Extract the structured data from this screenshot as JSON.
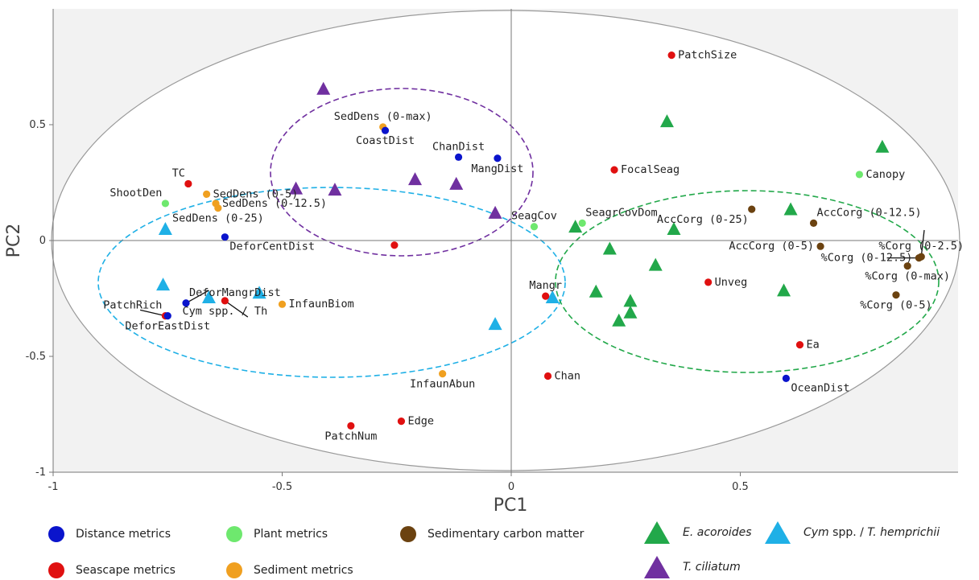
{
  "chart_data": {
    "type": "scatter",
    "xlabel": "PC1",
    "ylabel": "PC2",
    "xlim": [
      -1,
      0.98
    ],
    "ylim": [
      -1,
      1.0
    ],
    "x_ticks": [
      "-1",
      "-0.5",
      "0",
      "0.5"
    ],
    "y_ticks": [
      "0.5",
      "0",
      "-0.5",
      "-1"
    ],
    "groups": {
      "distance": {
        "name": "Distance metrics",
        "color": "#0a14cc"
      },
      "seascape": {
        "name": "Seascape metrics",
        "color": "#e01010"
      },
      "plant": {
        "name": "Plant metrics",
        "color": "#6ee86e"
      },
      "sediment": {
        "name": "Sediment metrics",
        "color": "#f0a020"
      },
      "carbon": {
        "name": "Sedimentary carbon matter",
        "color": "#6b4210"
      }
    },
    "species": {
      "enhalus": {
        "name": "E. acoroides",
        "color": "#22a84a"
      },
      "cym": {
        "name": "Cym spp. / T. hemprichii",
        "color": "#1fb0e6"
      },
      "tcil": {
        "name": "T. ciliatum",
        "color": "#7030a0"
      }
    },
    "points": [
      {
        "label": "PatchSize",
        "x": 0.35,
        "y": 0.8,
        "group": "seascape",
        "anchor": "right"
      },
      {
        "label": "SedDens (0-max)",
        "x": -0.28,
        "y": 0.49,
        "group": "sediment",
        "anchor": "above"
      },
      {
        "label": "CoastDist",
        "x": -0.275,
        "y": 0.475,
        "group": "distance",
        "anchor": "below"
      },
      {
        "label": "ChanDist",
        "x": -0.115,
        "y": 0.36,
        "group": "distance",
        "anchor": "above"
      },
      {
        "label": "MangDist",
        "x": -0.03,
        "y": 0.355,
        "group": "distance",
        "anchor": "below"
      },
      {
        "label": "FocalSeag",
        "x": 0.225,
        "y": 0.305,
        "group": "seascape",
        "anchor": "right"
      },
      {
        "label": "Canopy",
        "x": 0.76,
        "y": 0.285,
        "group": "plant",
        "anchor": "right"
      },
      {
        "label": "TC",
        "x": -0.705,
        "y": 0.245,
        "group": "seascape",
        "anchor": "aboveleft"
      },
      {
        "label": "SedDens (0-5)",
        "x": -0.665,
        "y": 0.2,
        "group": "sediment",
        "anchor": "right"
      },
      {
        "label": "SedDens (0-12.5)",
        "x": -0.645,
        "y": 0.16,
        "group": "sediment",
        "anchor": "right"
      },
      {
        "label": "SedDens (0-25)",
        "x": -0.64,
        "y": 0.14,
        "group": "sediment",
        "anchor": "below"
      },
      {
        "label": "ShootDen",
        "x": -0.755,
        "y": 0.16,
        "group": "plant",
        "anchor": "aboveleft"
      },
      {
        "label": "SeagCov",
        "x": 0.05,
        "y": 0.06,
        "group": "plant",
        "anchor": "above"
      },
      {
        "label": "SeagrCovDom",
        "x": 0.155,
        "y": 0.075,
        "group": "plant",
        "anchor": "aboveright"
      },
      {
        "label": "AccCorg (0-25)",
        "x": 0.525,
        "y": 0.135,
        "group": "carbon",
        "anchor": "belowleft"
      },
      {
        "label": "AccCorg (0-12.5)",
        "x": 0.66,
        "y": 0.075,
        "group": "carbon",
        "anchor": "aboveright"
      },
      {
        "label": "AccCorg (0-5)",
        "x": 0.675,
        "y": -0.025,
        "group": "carbon",
        "anchor": "left"
      },
      {
        "label": "%Corg (0-2.5)",
        "x": 0.895,
        "y": -0.07,
        "group": "carbon",
        "anchor": "above"
      },
      {
        "label": "%Corg (0-12.5)",
        "x": 0.89,
        "y": -0.075,
        "group": "carbon",
        "anchor": "left"
      },
      {
        "label": "%Corg (0-max)",
        "x": 0.865,
        "y": -0.11,
        "group": "carbon",
        "anchor": "below"
      },
      {
        "label": "%Corg (0-5)",
        "x": 0.84,
        "y": -0.235,
        "group": "carbon",
        "anchor": "below"
      },
      {
        "label": "DeforCentDist",
        "x": -0.625,
        "y": 0.015,
        "group": "distance",
        "anchor": "belowright"
      },
      {
        "label": "",
        "x": -0.255,
        "y": -0.02,
        "group": "seascape",
        "anchor": "none"
      },
      {
        "label": "Unveg",
        "x": 0.43,
        "y": -0.18,
        "group": "seascape",
        "anchor": "right"
      },
      {
        "label": "DeforMangrDist",
        "x": -0.71,
        "y": -0.27,
        "group": "distance",
        "anchor": "aboveright"
      },
      {
        "label": "PatchRich",
        "x": -0.755,
        "y": -0.325,
        "group": "seascape",
        "anchor": "aboveleft"
      },
      {
        "label": "DeforEastDist",
        "x": -0.75,
        "y": -0.325,
        "group": "distance",
        "anchor": "below"
      },
      {
        "label": "Cym spp. / Th",
        "x": -0.625,
        "y": -0.26,
        "group": "seascape",
        "anchor": "below"
      },
      {
        "label": "InfaunBiom",
        "x": -0.5,
        "y": -0.275,
        "group": "sediment",
        "anchor": "right"
      },
      {
        "label": "Mangr",
        "x": 0.075,
        "y": -0.24,
        "group": "seascape",
        "anchor": "above"
      },
      {
        "label": "Ea",
        "x": 0.63,
        "y": -0.45,
        "group": "seascape",
        "anchor": "right"
      },
      {
        "label": "InfaunAbun",
        "x": -0.15,
        "y": -0.575,
        "group": "sediment",
        "anchor": "below"
      },
      {
        "label": "Chan",
        "x": 0.08,
        "y": -0.585,
        "group": "seascape",
        "anchor": "right"
      },
      {
        "label": "OceanDist",
        "x": 0.6,
        "y": -0.595,
        "group": "distance",
        "anchor": "belowright"
      },
      {
        "label": "Edge",
        "x": -0.24,
        "y": -0.78,
        "group": "seascape",
        "anchor": "right"
      },
      {
        "label": "PatchNum",
        "x": -0.35,
        "y": -0.8,
        "group": "seascape",
        "anchor": "below"
      }
    ],
    "triangles": [
      {
        "species": "tcil",
        "x": -0.41,
        "y": 0.65
      },
      {
        "species": "tcil",
        "x": -0.21,
        "y": 0.26
      },
      {
        "species": "tcil",
        "x": -0.12,
        "y": 0.24
      },
      {
        "species": "tcil",
        "x": -0.47,
        "y": 0.22
      },
      {
        "species": "tcil",
        "x": -0.385,
        "y": 0.215
      },
      {
        "species": "tcil",
        "x": -0.035,
        "y": 0.115
      },
      {
        "species": "enhalus",
        "x": 0.34,
        "y": 0.51
      },
      {
        "species": "enhalus",
        "x": 0.81,
        "y": 0.4
      },
      {
        "species": "enhalus",
        "x": 0.61,
        "y": 0.13
      },
      {
        "species": "enhalus",
        "x": 0.14,
        "y": 0.055
      },
      {
        "species": "enhalus",
        "x": 0.355,
        "y": 0.045
      },
      {
        "species": "enhalus",
        "x": 0.215,
        "y": -0.04
      },
      {
        "species": "enhalus",
        "x": 0.315,
        "y": -0.11
      },
      {
        "species": "enhalus",
        "x": 0.185,
        "y": -0.225
      },
      {
        "species": "enhalus",
        "x": 0.595,
        "y": -0.22
      },
      {
        "species": "enhalus",
        "x": 0.26,
        "y": -0.265
      },
      {
        "species": "enhalus",
        "x": 0.26,
        "y": -0.315
      },
      {
        "species": "enhalus",
        "x": 0.235,
        "y": -0.35
      },
      {
        "species": "cym",
        "x": -0.755,
        "y": 0.045
      },
      {
        "species": "cym",
        "x": -0.76,
        "y": -0.195
      },
      {
        "species": "cym",
        "x": -0.66,
        "y": -0.25
      },
      {
        "species": "cym",
        "x": -0.55,
        "y": -0.23
      },
      {
        "species": "cym",
        "x": 0.09,
        "y": -0.25
      },
      {
        "species": "cym",
        "x": -0.035,
        "y": -0.365
      }
    ],
    "grid": false,
    "legend_position": "bottom"
  },
  "legend": {
    "distance": "Distance metrics",
    "plant": "Plant metrics",
    "carbon": "Sedimentary carbon matter",
    "enhalus": "E. acoroides",
    "cym_italic1": "Cym",
    "cym_mid": " spp. / ",
    "cym_italic2": "T. hemprichii",
    "seascape": "Seascape metrics",
    "sediment": "Sediment metrics",
    "tcil": "T. ciliatum"
  }
}
